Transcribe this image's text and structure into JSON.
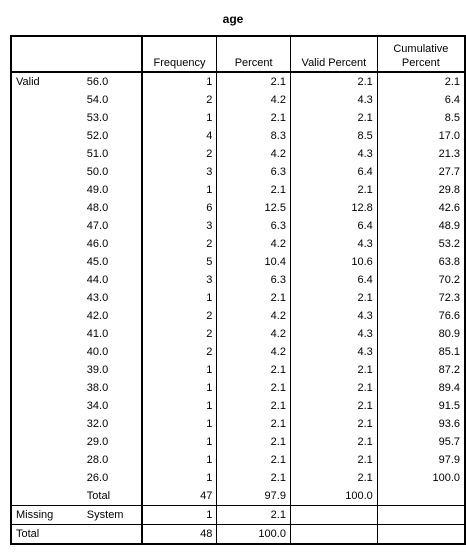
{
  "title": "age",
  "headers": {
    "frequency": "Frequency",
    "percent": "Percent",
    "valid_percent": "Valid Percent",
    "cumulative_percent_line1": "Cumulative",
    "cumulative_percent_line2": "Percent"
  },
  "valid_label": "Valid",
  "rows": [
    {
      "value": "56.0",
      "frequency": "1",
      "percent": "2.1",
      "valid_percent": "2.1",
      "cumulative": "2.1"
    },
    {
      "value": "54.0",
      "frequency": "2",
      "percent": "4.2",
      "valid_percent": "4.3",
      "cumulative": "6.4"
    },
    {
      "value": "53.0",
      "frequency": "1",
      "percent": "2.1",
      "valid_percent": "2.1",
      "cumulative": "8.5"
    },
    {
      "value": "52.0",
      "frequency": "4",
      "percent": "8.3",
      "valid_percent": "8.5",
      "cumulative": "17.0"
    },
    {
      "value": "51.0",
      "frequency": "2",
      "percent": "4.2",
      "valid_percent": "4.3",
      "cumulative": "21.3"
    },
    {
      "value": "50.0",
      "frequency": "3",
      "percent": "6.3",
      "valid_percent": "6.4",
      "cumulative": "27.7"
    },
    {
      "value": "49.0",
      "frequency": "1",
      "percent": "2.1",
      "valid_percent": "2.1",
      "cumulative": "29.8"
    },
    {
      "value": "48.0",
      "frequency": "6",
      "percent": "12.5",
      "valid_percent": "12.8",
      "cumulative": "42.6"
    },
    {
      "value": "47.0",
      "frequency": "3",
      "percent": "6.3",
      "valid_percent": "6.4",
      "cumulative": "48.9"
    },
    {
      "value": "46.0",
      "frequency": "2",
      "percent": "4.2",
      "valid_percent": "4.3",
      "cumulative": "53.2"
    },
    {
      "value": "45.0",
      "frequency": "5",
      "percent": "10.4",
      "valid_percent": "10.6",
      "cumulative": "63.8"
    },
    {
      "value": "44.0",
      "frequency": "3",
      "percent": "6.3",
      "valid_percent": "6.4",
      "cumulative": "70.2"
    },
    {
      "value": "43.0",
      "frequency": "1",
      "percent": "2.1",
      "valid_percent": "2.1",
      "cumulative": "72.3"
    },
    {
      "value": "42.0",
      "frequency": "2",
      "percent": "4.2",
      "valid_percent": "4.3",
      "cumulative": "76.6"
    },
    {
      "value": "41.0",
      "frequency": "2",
      "percent": "4.2",
      "valid_percent": "4.3",
      "cumulative": "80.9"
    },
    {
      "value": "40.0",
      "frequency": "2",
      "percent": "4.2",
      "valid_percent": "4.3",
      "cumulative": "85.1"
    },
    {
      "value": "39.0",
      "frequency": "1",
      "percent": "2.1",
      "valid_percent": "2.1",
      "cumulative": "87.2"
    },
    {
      "value": "38.0",
      "frequency": "1",
      "percent": "2.1",
      "valid_percent": "2.1",
      "cumulative": "89.4"
    },
    {
      "value": "34.0",
      "frequency": "1",
      "percent": "2.1",
      "valid_percent": "2.1",
      "cumulative": "91.5"
    },
    {
      "value": "32.0",
      "frequency": "1",
      "percent": "2.1",
      "valid_percent": "2.1",
      "cumulative": "93.6"
    },
    {
      "value": "29.0",
      "frequency": "1",
      "percent": "2.1",
      "valid_percent": "2.1",
      "cumulative": "95.7"
    },
    {
      "value": "28.0",
      "frequency": "1",
      "percent": "2.1",
      "valid_percent": "2.1",
      "cumulative": "97.9"
    },
    {
      "value": "26.0",
      "frequency": "1",
      "percent": "2.1",
      "valid_percent": "2.1",
      "cumulative": "100.0"
    }
  ],
  "valid_total": {
    "label": "Total",
    "frequency": "47",
    "percent": "97.9",
    "valid_percent": "100.0"
  },
  "missing": {
    "label": "Missing",
    "sublabel": "System",
    "frequency": "1",
    "percent": "2.1"
  },
  "total": {
    "label": "Total",
    "frequency": "48",
    "percent": "100.0"
  }
}
